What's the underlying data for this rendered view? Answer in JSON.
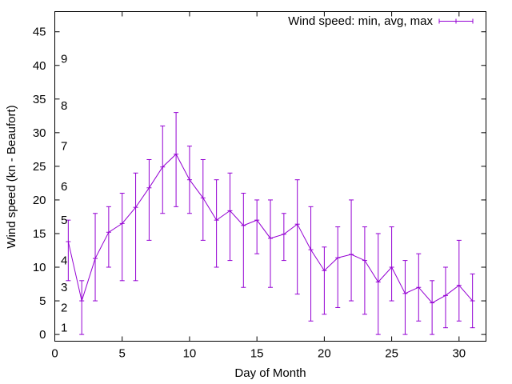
{
  "chart_data": {
    "type": "errorbar-line",
    "xlabel": "Day of Month",
    "ylabel": "Wind speed (kn - Beaufort)",
    "xlim": [
      0,
      32
    ],
    "ylim": [
      -1,
      48
    ],
    "xticks": [
      "0",
      "5",
      "10",
      "15",
      "20",
      "25",
      "30"
    ],
    "xtick_values": [
      0,
      5,
      10,
      15,
      20,
      25,
      30
    ],
    "yticks": [
      "0",
      "5",
      "10",
      "15",
      "20",
      "25",
      "30",
      "35",
      "40",
      "45"
    ],
    "ytick_values": [
      0,
      5,
      10,
      15,
      20,
      25,
      30,
      35,
      40,
      45
    ],
    "beaufort_labels": [
      {
        "label": "1",
        "y": 1
      },
      {
        "label": "2",
        "y": 4
      },
      {
        "label": "3",
        "y": 7
      },
      {
        "label": "4",
        "y": 11
      },
      {
        "label": "5",
        "y": 17
      },
      {
        "label": "6",
        "y": 22
      },
      {
        "label": "7",
        "y": 28
      },
      {
        "label": "8",
        "y": 34
      },
      {
        "label": "9",
        "y": 41
      }
    ],
    "legend": "Wind speed: min, avg, max",
    "legend_position": "top-right",
    "color": "#9400d3",
    "series": [
      {
        "name": "Wind speed: min, avg, max",
        "x": [
          1,
          2,
          3,
          4,
          5,
          6,
          7,
          8,
          9,
          10,
          11,
          12,
          13,
          14,
          15,
          16,
          17,
          18,
          19,
          20,
          21,
          22,
          23,
          24,
          25,
          26,
          27,
          28,
          29,
          30,
          31
        ],
        "min": [
          8,
          0,
          5,
          10,
          8,
          8,
          14,
          18,
          19,
          18,
          14,
          10,
          11,
          7,
          12,
          7,
          11,
          6,
          2,
          3,
          4,
          5,
          3,
          0,
          5,
          0,
          2,
          0,
          1,
          2,
          1
        ],
        "avg": [
          13.8,
          5,
          11.3,
          15.2,
          16.5,
          18.9,
          21.8,
          24.9,
          26.8,
          23,
          20.3,
          17,
          18.4,
          16.2,
          17,
          14.3,
          14.9,
          16.4,
          12.6,
          9.5,
          11.4,
          11.9,
          11,
          7.8,
          10,
          6.1,
          7,
          4.7,
          5.8,
          7.3,
          5
        ],
        "max": [
          17,
          8,
          18,
          19,
          21,
          24,
          26,
          31,
          33,
          28,
          26,
          23,
          24,
          21,
          20,
          20,
          18,
          23,
          19,
          13,
          16,
          20,
          16,
          15,
          16,
          11,
          12,
          8,
          10,
          14,
          9
        ]
      }
    ]
  }
}
